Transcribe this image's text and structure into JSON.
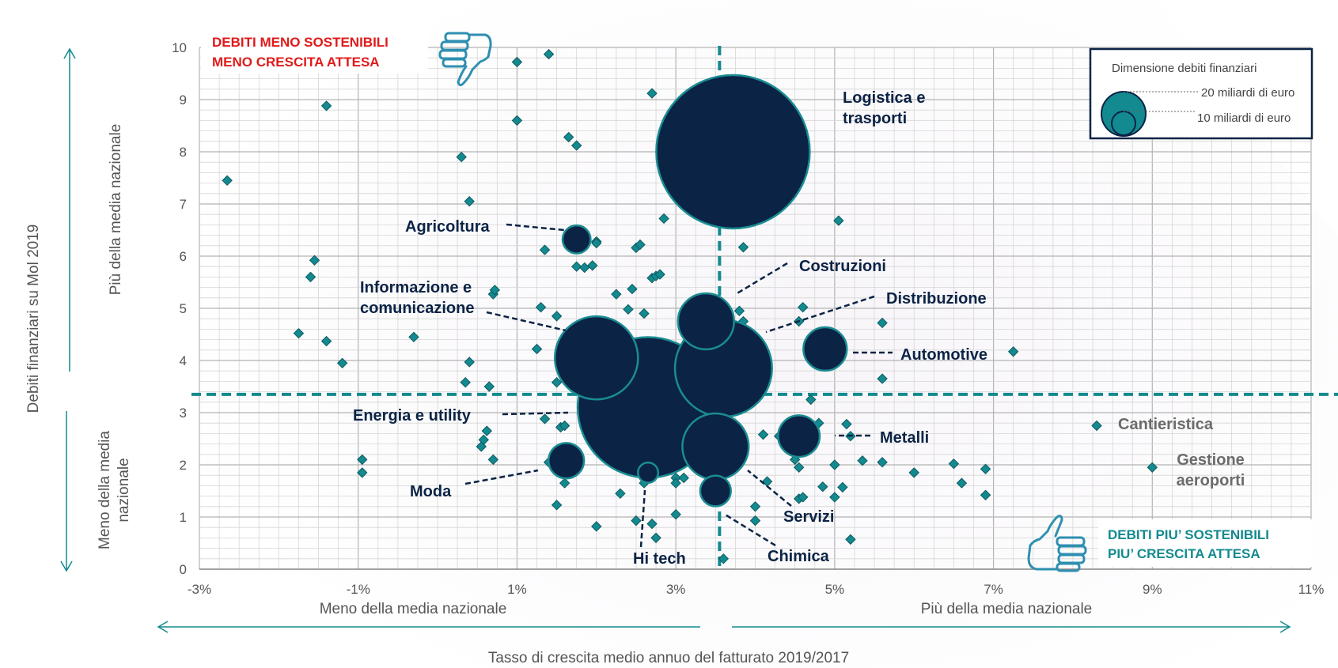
{
  "chart_data": {
    "type": "scatter",
    "title": "",
    "xlabel": "Tasso di crescita medio annuo del fatturato 2019/2017",
    "ylabel": "Debiti finanziari su Mol 2019",
    "xlim": [
      -3,
      11
    ],
    "ylim": [
      0,
      10
    ],
    "x_ticks": [
      "-3%",
      "-1%",
      "1%",
      "3%",
      "5%",
      "7%",
      "9%",
      "11%"
    ],
    "y_ticks": [
      "0",
      "1",
      "2",
      "3",
      "4",
      "5",
      "6",
      "7",
      "8",
      "9",
      "10"
    ],
    "x_sublabels": {
      "left": "Meno della media nazionale",
      "right": "Più della media nazionale"
    },
    "y_sublabels": {
      "top": "Più della media nazionale",
      "bottom": "Meno della media\nnazionale"
    },
    "reference_lines": {
      "x": 3.55,
      "y": 3.35
    },
    "corner_labels": {
      "top_left": [
        "DEBITI MENO SOSTENIBILI",
        "MENO CRESCITA ATTESA"
      ],
      "bottom_right": [
        "DEBITI PIU’ SOSTENIBILI",
        "PIU’ CRESCITA ATTESA"
      ]
    },
    "legend": {
      "title": "Dimensione debiti finanziari",
      "items": [
        {
          "label": "20 miliardi di euro",
          "value": 20
        },
        {
          "label": "10 miliardi di euro",
          "value": 10
        }
      ],
      "placement": "top-right"
    },
    "colors": {
      "bubble": "#0b2345",
      "bubble_stroke": "#1a8c92",
      "diamond": "#138a8f",
      "diamond_stroke": "#0d5a60",
      "refline": "#148a8f",
      "grid": "#c8c8c8",
      "red": "#e01a1a",
      "teal": "#138a8f"
    },
    "sectors": [
      {
        "name": "Logistica e trasporti",
        "label_lines": [
          "Logistica e",
          "trasporti"
        ],
        "x": 3.72,
        "y": 8.0,
        "debt": 75
      },
      {
        "name": "Agricoltura",
        "label_lines": [
          "Agricoltura"
        ],
        "x": 1.75,
        "y": 6.32,
        "debt": 2.5
      },
      {
        "name": "Costruzioni",
        "label_lines": [
          "Costruzioni"
        ],
        "x": 3.38,
        "y": 4.75,
        "debt": 10
      },
      {
        "name": "Distribuzione",
        "label_lines": [
          "Distribuzione"
        ],
        "x": 3.6,
        "y": 3.85,
        "debt": 30
      },
      {
        "name": "Informazione e comunicazione",
        "label_lines": [
          "Informazione e",
          "comunicazione"
        ],
        "x": 2.0,
        "y": 4.05,
        "debt": 22
      },
      {
        "name": "Automotive",
        "label_lines": [
          "Automotive"
        ],
        "x": 4.88,
        "y": 4.22,
        "debt": 6
      },
      {
        "name": "Energia e utility",
        "label_lines": [
          "Energia e utility"
        ],
        "x": 2.65,
        "y": 3.1,
        "debt": 63
      },
      {
        "name": "Metalli",
        "label_lines": [
          "Metalli"
        ],
        "x": 4.55,
        "y": 2.55,
        "debt": 5.5
      },
      {
        "name": "Moda",
        "label_lines": [
          "Moda"
        ],
        "x": 1.62,
        "y": 2.08,
        "debt": 4
      },
      {
        "name": "Hi tech",
        "label_lines": [
          "Hi tech"
        ],
        "x": 2.65,
        "y": 1.85,
        "debt": 1.3
      },
      {
        "name": "Servizi",
        "label_lines": [
          "Servizi"
        ],
        "x": 3.5,
        "y": 2.35,
        "debt": 14
      },
      {
        "name": "Chimica",
        "label_lines": [
          "Chimica"
        ],
        "x": 3.5,
        "y": 1.5,
        "debt": 3
      },
      {
        "name": "Cantieristica",
        "label_lines": [
          "Cantieristica"
        ],
        "x": 8.3,
        "y": 2.75,
        "debt": 0
      },
      {
        "name": "Gestione aeroporti",
        "label_lines": [
          "Gestione",
          "aeroporti"
        ],
        "x": 9.0,
        "y": 1.95,
        "debt": 0
      }
    ],
    "points": [
      [
        -2.65,
        7.45
      ],
      [
        -1.75,
        4.52
      ],
      [
        -1.55,
        5.92
      ],
      [
        -1.6,
        5.6
      ],
      [
        -1.4,
        4.37
      ],
      [
        -1.4,
        8.88
      ],
      [
        -1.2,
        3.95
      ],
      [
        -0.95,
        1.85
      ],
      [
        -0.95,
        2.1
      ],
      [
        -0.3,
        4.45
      ],
      [
        0.3,
        7.9
      ],
      [
        0.4,
        7.05
      ],
      [
        0.4,
        3.97
      ],
      [
        0.35,
        3.58
      ],
      [
        0.65,
        3.5
      ],
      [
        0.7,
        5.27
      ],
      [
        0.72,
        5.35
      ],
      [
        0.7,
        2.1
      ],
      [
        0.55,
        2.35
      ],
      [
        0.58,
        2.48
      ],
      [
        0.62,
        2.65
      ],
      [
        1.0,
        9.72
      ],
      [
        1.0,
        8.6
      ],
      [
        1.4,
        9.87
      ],
      [
        1.25,
        4.22
      ],
      [
        1.3,
        5.02
      ],
      [
        1.35,
        6.12
      ],
      [
        1.5,
        4.85
      ],
      [
        1.35,
        2.88
      ],
      [
        1.5,
        3.58
      ],
      [
        1.55,
        2.72
      ],
      [
        1.6,
        2.75
      ],
      [
        1.5,
        2.2
      ],
      [
        1.4,
        2.05
      ],
      [
        1.5,
        1.23
      ],
      [
        1.6,
        1.65
      ],
      [
        1.65,
        8.28
      ],
      [
        1.75,
        8.12
      ],
      [
        1.75,
        5.8
      ],
      [
        1.85,
        5.78
      ],
      [
        1.95,
        5.82
      ],
      [
        2.0,
        6.28
      ],
      [
        2.0,
        0.82
      ],
      [
        2.25,
        5.27
      ],
      [
        2.3,
        1.45
      ],
      [
        2.45,
        5.37
      ],
      [
        2.4,
        4.98
      ],
      [
        2.5,
        6.16
      ],
      [
        2.55,
        6.22
      ],
      [
        2.6,
        4.9
      ],
      [
        2.7,
        5.58
      ],
      [
        2.75,
        5.62
      ],
      [
        2.8,
        5.65
      ],
      [
        2.5,
        0.93
      ],
      [
        2.7,
        0.87
      ],
      [
        2.75,
        0.6
      ],
      [
        2.6,
        1.65
      ],
      [
        2.7,
        9.12
      ],
      [
        2.85,
        6.72
      ],
      [
        2.9,
        7.55
      ],
      [
        2.9,
        7.85
      ],
      [
        3.0,
        1.75
      ],
      [
        3.0,
        1.65
      ],
      [
        3.0,
        1.05
      ],
      [
        3.85,
        6.17
      ],
      [
        3.8,
        4.95
      ],
      [
        3.85,
        4.75
      ],
      [
        4.0,
        1.2
      ],
      [
        4.0,
        0.93
      ],
      [
        4.1,
        2.58
      ],
      [
        4.15,
        1.68
      ],
      [
        4.3,
        2.55
      ],
      [
        4.4,
        2.8
      ],
      [
        4.5,
        2.1
      ],
      [
        4.55,
        1.95
      ],
      [
        4.55,
        1.35
      ],
      [
        4.6,
        1.38
      ],
      [
        4.55,
        4.75
      ],
      [
        4.6,
        5.02
      ],
      [
        4.7,
        3.25
      ],
      [
        4.8,
        2.8
      ],
      [
        4.85,
        1.58
      ],
      [
        5.0,
        2.0
      ],
      [
        5.0,
        1.38
      ],
      [
        5.05,
        6.68
      ],
      [
        5.1,
        1.57
      ],
      [
        5.15,
        2.78
      ],
      [
        5.2,
        2.55
      ],
      [
        5.2,
        0.57
      ],
      [
        5.35,
        2.08
      ],
      [
        5.6,
        4.72
      ],
      [
        5.6,
        3.65
      ],
      [
        5.6,
        2.05
      ],
      [
        6.0,
        1.85
      ],
      [
        6.5,
        2.02
      ],
      [
        6.6,
        1.65
      ],
      [
        6.9,
        1.92
      ],
      [
        6.9,
        1.42
      ],
      [
        7.25,
        4.17
      ],
      [
        8.3,
        2.75
      ],
      [
        9.0,
        1.95
      ],
      [
        3.6,
        0.2
      ],
      [
        2.0,
        6.25
      ],
      [
        2.95,
        1.9
      ],
      [
        3.1,
        1.75
      ]
    ]
  }
}
